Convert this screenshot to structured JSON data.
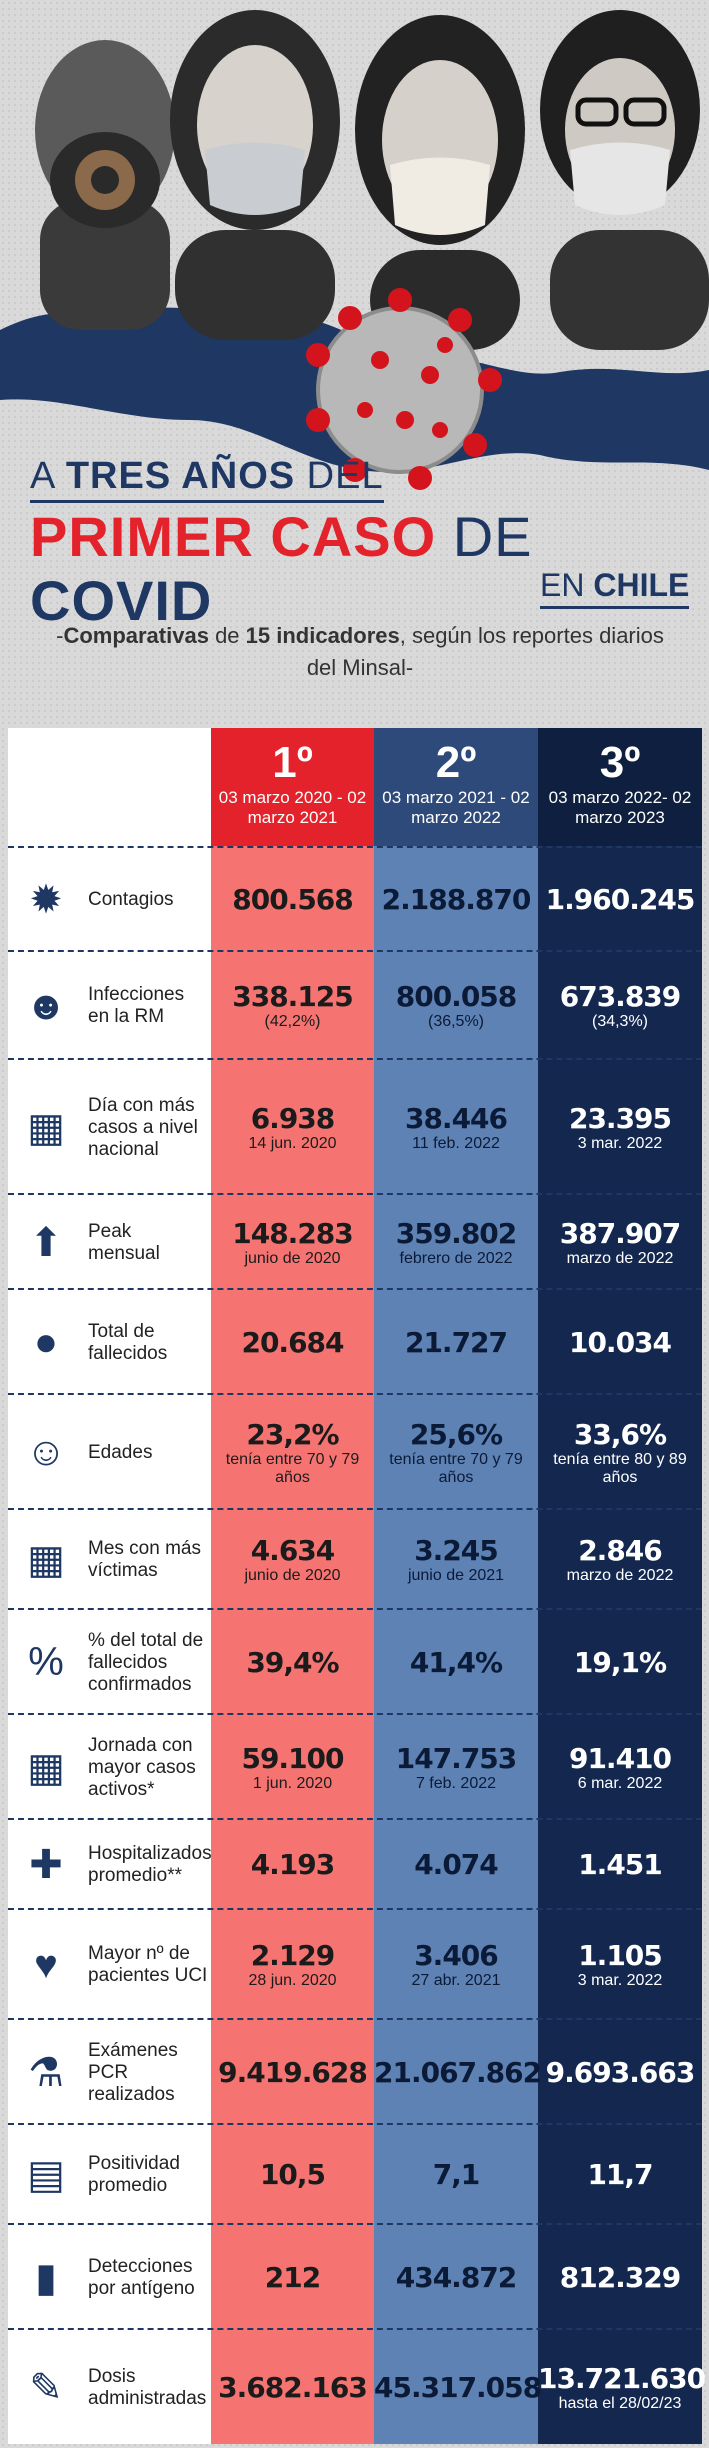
{
  "title": {
    "line1_pre": "A ",
    "line1_bold": "TRES AÑOS",
    "line1_post": " DEL",
    "line2_red": "PRIMER CASO",
    "line2_mid": " DE ",
    "line2_blue": "COVID",
    "line3_pre": "EN ",
    "line3_bold": "CHILE"
  },
  "subtitle": {
    "pre": "-",
    "bold1": "Comparativas",
    "mid": " de ",
    "bold2": "15 indicadores",
    "post": ", según los reportes diarios del Minsal-"
  },
  "columns": [
    {
      "num": "1º",
      "period": "03 marzo 2020 - 02 marzo 2021"
    },
    {
      "num": "2º",
      "period": "03 marzo 2021 - 02 marzo 2022"
    },
    {
      "num": "3º",
      "period": "03 marzo 2022- 02 marzo 2023"
    }
  ],
  "rows": [
    {
      "icon": "virus-icon",
      "label": "Contagios",
      "values": [
        [
          "800.568",
          ""
        ],
        [
          "2.188.870",
          ""
        ],
        [
          "1.960.245",
          ""
        ]
      ]
    },
    {
      "icon": "masked-person-icon",
      "label": "Infecciones en la RM",
      "values": [
        [
          "338.125",
          "(42,2%)"
        ],
        [
          "800.058",
          "(36,5%)"
        ],
        [
          "673.839",
          "(34,3%)"
        ]
      ]
    },
    {
      "icon": "calendar-virus-icon",
      "label": "Día con más casos a nivel nacional",
      "values": [
        [
          "6.938",
          "14 jun. 2020"
        ],
        [
          "38.446",
          "11 feb. 2022"
        ],
        [
          "23.395",
          "3 mar. 2022"
        ]
      ]
    },
    {
      "icon": "calendar-arrow-icon",
      "label": "Peak mensual",
      "values": [
        [
          "148.283",
          "junio de 2020"
        ],
        [
          "359.802",
          "febrero de 2022"
        ],
        [
          "387.907",
          "marzo de 2022"
        ]
      ]
    },
    {
      "icon": "person-silhouette-icon",
      "label": "Total de fallecidos",
      "values": [
        [
          "20.684",
          ""
        ],
        [
          "21.727",
          ""
        ],
        [
          "10.034",
          ""
        ]
      ]
    },
    {
      "icon": "elderly-person-icon",
      "label": "Edades",
      "values": [
        [
          "23,2%",
          "tenía entre 70 y 79 años"
        ],
        [
          "25,6%",
          "tenía entre 70 y 79 años"
        ],
        [
          "33,6%",
          "tenía entre 80 y 89 años"
        ]
      ]
    },
    {
      "icon": "calendar-person-icon",
      "label": "Mes con más víctimas",
      "values": [
        [
          "4.634",
          "junio de 2020"
        ],
        [
          "3.245",
          "junio de 2021"
        ],
        [
          "2.846",
          "marzo de 2022"
        ]
      ]
    },
    {
      "icon": "percent-person-icon",
      "label": "% del total de fallecidos confirmados",
      "values": [
        [
          "39,4%",
          ""
        ],
        [
          "41,4%",
          ""
        ],
        [
          "19,1%",
          ""
        ]
      ]
    },
    {
      "icon": "calendar-mask-icon",
      "label": "Jornada con mayor casos activos*",
      "values": [
        [
          "59.100",
          "1 jun. 2020"
        ],
        [
          "147.753",
          "7 feb. 2022"
        ],
        [
          "91.410",
          "6 mar. 2022"
        ]
      ]
    },
    {
      "icon": "hospital-icon",
      "label": "Hospitalizados promedio**",
      "values": [
        [
          "4.193",
          ""
        ],
        [
          "4.074",
          ""
        ],
        [
          "1.451",
          ""
        ]
      ]
    },
    {
      "icon": "icu-bed-icon",
      "label": "Mayor nº de pacientes UCI",
      "values": [
        [
          "2.129",
          "28 jun. 2020"
        ],
        [
          "3.406",
          "27 abr. 2021"
        ],
        [
          "1.105",
          "3 mar. 2022"
        ]
      ]
    },
    {
      "icon": "test-tube-icon",
      "label": "Exámenes PCR realizados",
      "values": [
        [
          "9.419.628",
          ""
        ],
        [
          "21.067.862",
          ""
        ],
        [
          "9.693.663",
          ""
        ]
      ]
    },
    {
      "icon": "clipboard-virus-icon",
      "label": "Positividad promedio",
      "values": [
        [
          "10,5",
          ""
        ],
        [
          "7,1",
          ""
        ],
        [
          "11,7",
          ""
        ]
      ]
    },
    {
      "icon": "antigen-test-icon",
      "label": "Detecciones por antígeno",
      "values": [
        [
          "212",
          ""
        ],
        [
          "434.872",
          ""
        ],
        [
          "812.329",
          ""
        ]
      ]
    },
    {
      "icon": "syringe-icon",
      "label": "Dosis administradas",
      "values": [
        [
          "3.682.163",
          ""
        ],
        [
          "45.317.058",
          ""
        ],
        [
          "13.721.630",
          "hasta el 28/02/23"
        ]
      ]
    }
  ],
  "colors": {
    "red": "#e3222b",
    "navy": "#1e3763",
    "col1": "#f57472",
    "col2": "#5e82b4",
    "col3": "#14284f"
  }
}
